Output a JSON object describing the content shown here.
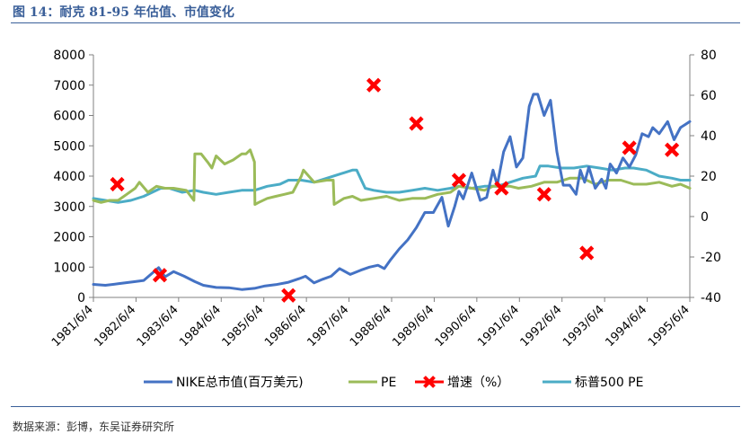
{
  "figure": {
    "title": "图 14：耐克 81-95 年估值、市值变化",
    "source": "数据来源：彭博，东吴证券研究所"
  },
  "colors": {
    "title": "#3a5f99",
    "nike_cap": "#4472c4",
    "pe": "#9bbb59",
    "growth": "#ff0000",
    "sp500_pe": "#4bacc6"
  },
  "chart_data": {
    "type": "line",
    "title": "耐克 81-95 年估值、市值变化",
    "categories": [
      "1981/6/4",
      "1982/6/4",
      "1983/6/4",
      "1984/6/4",
      "1985/6/4",
      "1986/6/4",
      "1987/6/4",
      "1988/6/4",
      "1989/6/4",
      "1990/6/4",
      "1991/6/4",
      "1992/6/4",
      "1993/6/4",
      "1994/6/4",
      "1995/6/4"
    ],
    "y_left": {
      "ylim": [
        0,
        8000
      ],
      "ticks": [
        0,
        1000,
        2000,
        3000,
        4000,
        5000,
        6000,
        7000,
        8000
      ]
    },
    "y_right": {
      "ylim": [
        -40,
        80
      ],
      "ticks": [
        -40,
        -20,
        0,
        20,
        40,
        60,
        80
      ]
    },
    "legend_position": "bottom",
    "series": [
      {
        "name": "NIKE总市值(百万美元)",
        "axis": "left",
        "marker": "none",
        "x": [
          1981.42,
          1981.7,
          1982.0,
          1982.4,
          1982.6,
          1982.8,
          1982.95,
          1983.1,
          1983.3,
          1983.55,
          1983.8,
          1984.0,
          1984.3,
          1984.6,
          1984.9,
          1985.2,
          1985.45,
          1985.7,
          1986.0,
          1986.25,
          1986.4,
          1986.6,
          1986.8,
          1987.0,
          1987.2,
          1987.45,
          1987.7,
          1987.9,
          1988.1,
          1988.25,
          1988.4,
          1988.6,
          1988.8,
          1989.0,
          1989.2,
          1989.4,
          1989.6,
          1989.75,
          1989.9,
          1990.0,
          1990.1,
          1990.3,
          1990.5,
          1990.65,
          1990.8,
          1990.9,
          1991.05,
          1991.2,
          1991.35,
          1991.5,
          1991.65,
          1991.75,
          1991.85,
          1992.0,
          1992.15,
          1992.3,
          1992.45,
          1992.6,
          1992.75,
          1992.85,
          1992.95,
          1993.05,
          1993.2,
          1993.35,
          1993.45,
          1993.55,
          1993.7,
          1993.85,
          1994.0,
          1994.15,
          1994.3,
          1994.45,
          1994.55,
          1994.7,
          1994.9,
          1995.05,
          1995.2,
          1995.42
        ],
        "values": [
          430,
          400,
          450,
          520,
          560,
          800,
          980,
          680,
          850,
          700,
          520,
          400,
          330,
          320,
          260,
          300,
          380,
          420,
          500,
          620,
          700,
          480,
          600,
          700,
          950,
          760,
          900,
          1000,
          1060,
          950,
          1250,
          1600,
          1900,
          2300,
          2800,
          2800,
          3300,
          2350,
          3000,
          3500,
          3250,
          4100,
          3200,
          3300,
          4200,
          3700,
          4800,
          5300,
          4300,
          4600,
          6300,
          6700,
          6700,
          6000,
          6500,
          4800,
          3700,
          3700,
          3400,
          4200,
          3800,
          4300,
          3600,
          3900,
          3600,
          4400,
          4100,
          4600,
          4300,
          4700,
          5400,
          5300,
          5600,
          5400,
          5800,
          5200,
          5600,
          5800
        ]
      },
      {
        "name": "PE",
        "axis": "right",
        "marker": "none",
        "x": [
          1981.42,
          1981.6,
          1981.8,
          1982.0,
          1982.2,
          1982.4,
          1982.5,
          1982.7,
          1982.9,
          1983.1,
          1983.3,
          1983.6,
          1983.78,
          1983.8,
          1983.95,
          1984.1,
          1984.2,
          1984.3,
          1984.5,
          1984.7,
          1984.9,
          1985.0,
          1985.1,
          1985.2,
          1985.21,
          1985.3,
          1985.5,
          1985.7,
          1985.9,
          1986.1,
          1986.3,
          1986.35,
          1986.6,
          1986.9,
          1987.05,
          1987.07,
          1987.3,
          1987.5,
          1987.7,
          1988.0,
          1988.3,
          1988.6,
          1988.9,
          1989.2,
          1989.5,
          1989.8,
          1990.0,
          1990.3,
          1990.6,
          1990.8,
          1991.0,
          1991.2,
          1991.4,
          1991.7,
          1992.0,
          1992.3,
          1992.6,
          1992.9,
          1993.2,
          1993.5,
          1993.8,
          1994.1,
          1994.4,
          1994.7,
          1995.0,
          1995.2,
          1995.42
        ],
        "values": [
          8,
          7,
          8,
          8,
          11,
          14,
          17,
          12,
          15,
          14,
          14,
          13,
          8,
          31,
          31,
          27,
          24,
          30,
          26,
          28,
          31,
          31,
          33,
          27,
          6,
          7,
          9,
          10,
          11,
          12,
          20,
          23,
          17,
          18,
          18,
          6,
          9,
          10,
          8,
          9,
          10,
          8,
          9,
          9,
          11,
          12,
          15,
          14,
          13,
          15,
          15,
          15,
          14,
          15,
          17,
          17,
          19,
          19,
          16,
          18,
          18,
          16,
          16,
          17,
          15,
          16,
          14
        ]
      },
      {
        "name": "增速（%）",
        "axis": "right",
        "marker": "x",
        "line": "none",
        "x": [
          1981.98,
          1982.98,
          1986.0,
          1988.0,
          1989.0,
          1990.0,
          1991.0,
          1992.0,
          1993.0,
          1994.0,
          1995.0
        ],
        "values": [
          16,
          -29,
          -39,
          65,
          46,
          18,
          14,
          11,
          -18,
          34,
          33
        ]
      },
      {
        "name": "标普500 PE",
        "axis": "right",
        "marker": "none",
        "x": [
          1981.42,
          1981.7,
          1982.0,
          1982.3,
          1982.6,
          1982.8,
          1983.0,
          1983.2,
          1983.5,
          1983.8,
          1984.0,
          1984.3,
          1984.6,
          1984.9,
          1985.2,
          1985.5,
          1985.8,
          1986.0,
          1986.3,
          1986.6,
          1986.9,
          1987.2,
          1987.5,
          1987.6,
          1987.8,
          1988.0,
          1988.3,
          1988.6,
          1988.9,
          1989.2,
          1989.5,
          1989.8,
          1990.0,
          1990.3,
          1990.6,
          1990.9,
          1991.2,
          1991.5,
          1991.8,
          1991.9,
          1992.1,
          1992.4,
          1992.7,
          1993.0,
          1993.3,
          1993.6,
          1993.9,
          1994.1,
          1994.4,
          1994.7,
          1995.0,
          1995.2,
          1995.42
        ],
        "values": [
          9,
          8,
          7,
          8,
          10,
          12,
          14,
          14,
          12,
          13,
          12,
          11,
          12,
          13,
          13,
          15,
          16,
          18,
          18,
          17,
          19,
          21,
          23,
          23,
          14,
          13,
          12,
          12,
          13,
          14,
          13,
          14,
          15,
          14,
          15,
          15,
          17,
          19,
          20,
          25,
          25,
          24,
          24,
          25,
          24,
          23,
          24,
          24,
          23,
          20,
          19,
          18,
          18
        ]
      }
    ]
  }
}
